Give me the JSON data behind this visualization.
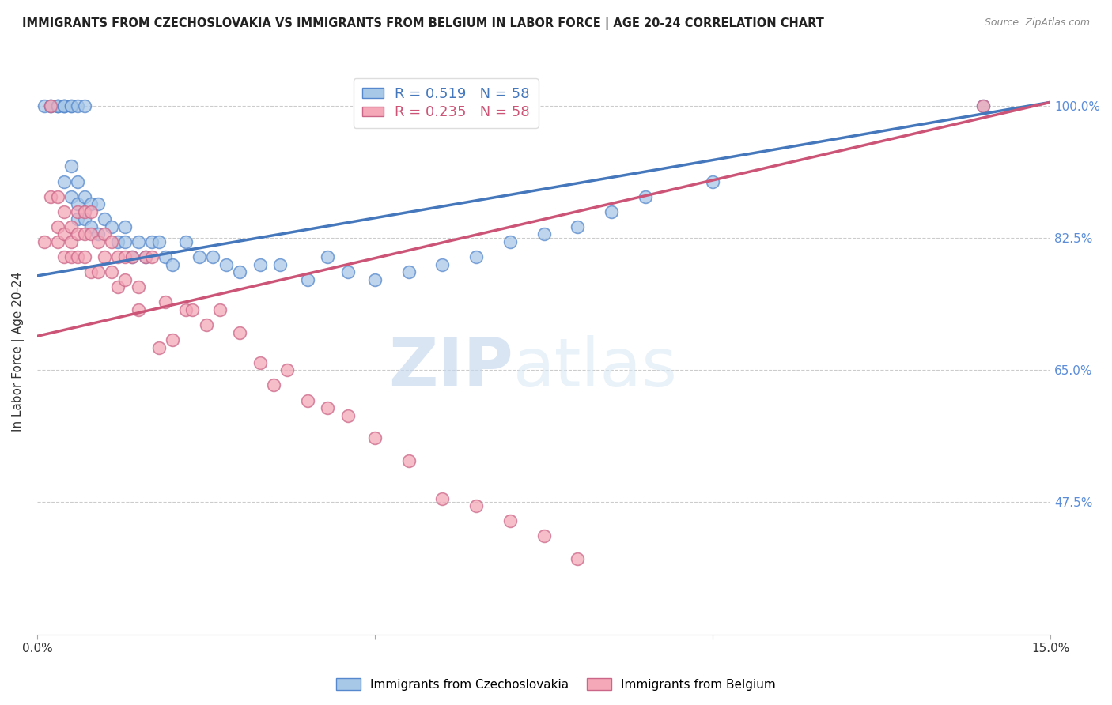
{
  "title": "IMMIGRANTS FROM CZECHOSLOVAKIA VS IMMIGRANTS FROM BELGIUM IN LABOR FORCE | AGE 20-24 CORRELATION CHART",
  "source": "Source: ZipAtlas.com",
  "ylabel": "In Labor Force | Age 20-24",
  "xlim": [
    0.0,
    0.15
  ],
  "ylim": [
    0.3,
    1.05
  ],
  "yticks": [
    0.475,
    0.65,
    0.825,
    1.0
  ],
  "ytick_labels": [
    "47.5%",
    "65.0%",
    "82.5%",
    "100.0%"
  ],
  "xticks": [
    0.0,
    0.05,
    0.1,
    0.15
  ],
  "xtick_labels": [
    "0.0%",
    "",
    "",
    "15.0%"
  ],
  "R_blue": 0.519,
  "N_blue": 58,
  "R_pink": 0.235,
  "N_pink": 58,
  "blue_color": "#a8c8e8",
  "pink_color": "#f4a8b8",
  "blue_edge_color": "#5588cc",
  "pink_edge_color": "#cc6688",
  "blue_line_color": "#4477bb",
  "pink_line_color": "#cc5577",
  "legend_label_blue": "Immigrants from Czechoslovakia",
  "legend_label_pink": "Immigrants from Belgium",
  "watermark_zip": "ZIP",
  "watermark_atlas": "atlas",
  "blue_x": [
    0.001,
    0.002,
    0.002,
    0.003,
    0.003,
    0.003,
    0.004,
    0.004,
    0.004,
    0.004,
    0.005,
    0.005,
    0.005,
    0.005,
    0.006,
    0.006,
    0.006,
    0.006,
    0.007,
    0.007,
    0.007,
    0.008,
    0.008,
    0.009,
    0.009,
    0.01,
    0.011,
    0.012,
    0.013,
    0.013,
    0.014,
    0.015,
    0.016,
    0.017,
    0.018,
    0.019,
    0.02,
    0.022,
    0.024,
    0.026,
    0.028,
    0.03,
    0.033,
    0.036,
    0.04,
    0.043,
    0.046,
    0.05,
    0.055,
    0.06,
    0.065,
    0.07,
    0.075,
    0.08,
    0.085,
    0.09,
    0.1,
    0.14
  ],
  "blue_y": [
    1.0,
    1.0,
    1.0,
    1.0,
    1.0,
    1.0,
    1.0,
    1.0,
    1.0,
    0.9,
    1.0,
    1.0,
    0.92,
    0.88,
    1.0,
    0.9,
    0.87,
    0.85,
    1.0,
    0.88,
    0.85,
    0.87,
    0.84,
    0.87,
    0.83,
    0.85,
    0.84,
    0.82,
    0.84,
    0.82,
    0.8,
    0.82,
    0.8,
    0.82,
    0.82,
    0.8,
    0.79,
    0.82,
    0.8,
    0.8,
    0.79,
    0.78,
    0.79,
    0.79,
    0.77,
    0.8,
    0.78,
    0.77,
    0.78,
    0.79,
    0.8,
    0.82,
    0.83,
    0.84,
    0.86,
    0.88,
    0.9,
    1.0
  ],
  "pink_x": [
    0.001,
    0.002,
    0.002,
    0.003,
    0.003,
    0.003,
    0.004,
    0.004,
    0.004,
    0.005,
    0.005,
    0.005,
    0.006,
    0.006,
    0.006,
    0.007,
    0.007,
    0.007,
    0.008,
    0.008,
    0.008,
    0.009,
    0.009,
    0.01,
    0.01,
    0.011,
    0.011,
    0.012,
    0.012,
    0.013,
    0.013,
    0.014,
    0.015,
    0.015,
    0.016,
    0.017,
    0.018,
    0.019,
    0.02,
    0.022,
    0.023,
    0.025,
    0.027,
    0.03,
    0.033,
    0.035,
    0.037,
    0.04,
    0.043,
    0.046,
    0.05,
    0.055,
    0.06,
    0.065,
    0.07,
    0.075,
    0.08,
    0.14
  ],
  "pink_y": [
    0.82,
    1.0,
    0.88,
    0.88,
    0.84,
    0.82,
    0.86,
    0.83,
    0.8,
    0.84,
    0.82,
    0.8,
    0.86,
    0.83,
    0.8,
    0.86,
    0.83,
    0.8,
    0.86,
    0.83,
    0.78,
    0.82,
    0.78,
    0.83,
    0.8,
    0.82,
    0.78,
    0.8,
    0.76,
    0.8,
    0.77,
    0.8,
    0.76,
    0.73,
    0.8,
    0.8,
    0.68,
    0.74,
    0.69,
    0.73,
    0.73,
    0.71,
    0.73,
    0.7,
    0.66,
    0.63,
    0.65,
    0.61,
    0.6,
    0.59,
    0.56,
    0.53,
    0.48,
    0.47,
    0.45,
    0.43,
    0.4,
    1.0
  ]
}
